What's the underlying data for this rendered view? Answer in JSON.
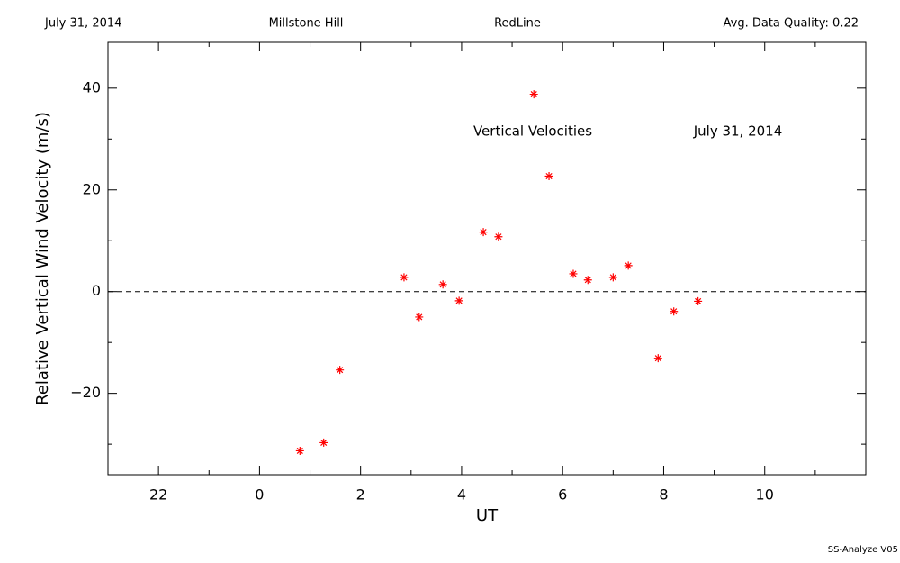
{
  "chart_data": {
    "type": "scatter",
    "header": [
      "July 31, 2014",
      "Millstone Hill",
      "RedLine",
      "Avg. Data Quality: 0.22"
    ],
    "annotations": [
      "Vertical Velocities",
      "July 31, 2014"
    ],
    "footer": "SS-Analyze V05",
    "xlabel": "UT",
    "ylabel": "Relative Vertical Wind Velocity (m/s)",
    "color": "#ff0000",
    "zero_line": true,
    "xlim": [
      -3,
      12
    ],
    "ylim": [
      -36,
      49
    ],
    "xticks": [
      {
        "value": -2,
        "label": "22"
      },
      0,
      2,
      4,
      6,
      8,
      10
    ],
    "xminorticks": [
      -3,
      -1,
      1,
      3,
      5,
      7,
      9,
      11
    ],
    "yticks": [
      {
        "value": -20,
        "label": "−20"
      },
      0,
      20,
      40
    ],
    "yminorticks": [
      -30,
      -10,
      10,
      30
    ],
    "x": [
      0.8,
      1.27,
      1.59,
      2.86,
      3.16,
      3.63,
      3.95,
      4.43,
      4.73,
      5.43,
      5.73,
      6.21,
      6.5,
      7.0,
      7.3,
      7.89,
      8.2,
      8.68
    ],
    "values": [
      -31.3,
      -29.7,
      -15.4,
      2.8,
      -5.0,
      1.4,
      -1.8,
      11.7,
      10.8,
      38.8,
      22.7,
      3.5,
      2.3,
      2.8,
      5.1,
      -13.1,
      -3.9,
      -1.9
    ]
  }
}
